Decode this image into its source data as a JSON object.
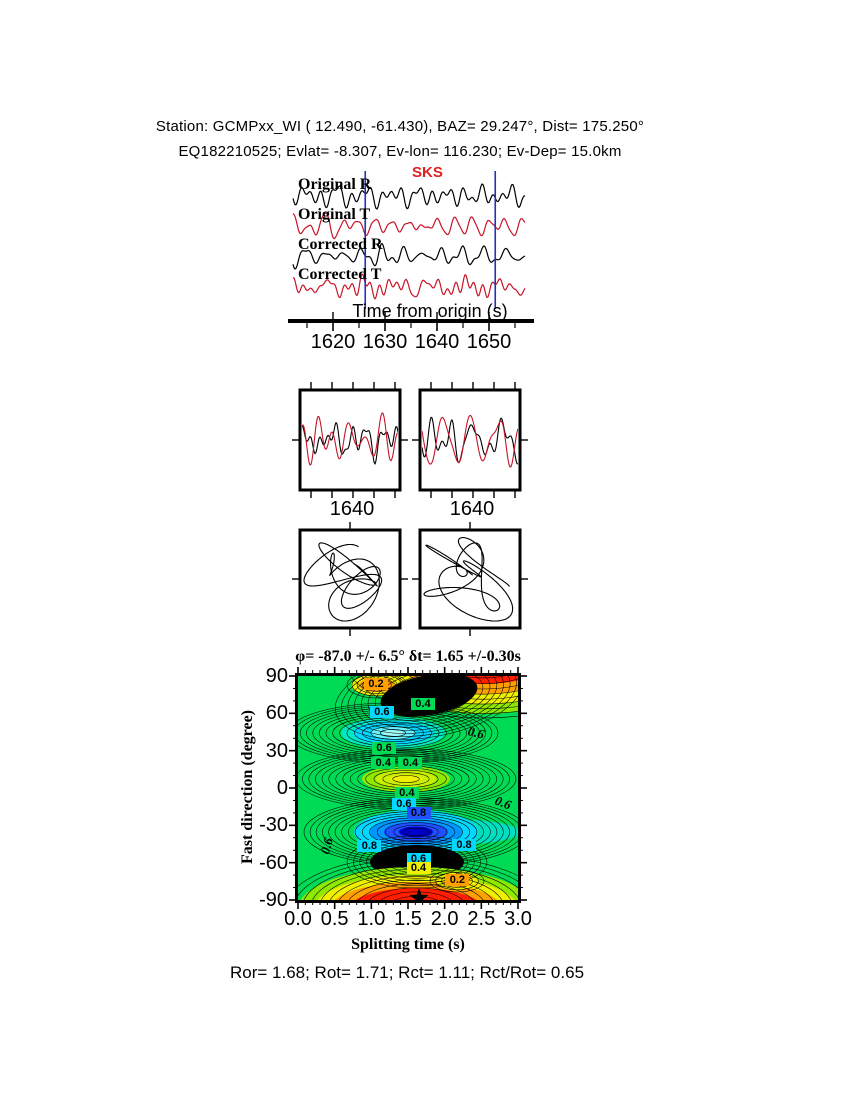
{
  "header": {
    "line1": "Station: GCMPxx_WI (  12.490,  -61.430), BAZ=   29.247°, Dist=  175.250°",
    "line2": "EQ182210525; Evlat=  -8.307, Ev-lon= 116.230; Ev-Dep= 15.0km"
  },
  "traces": {
    "phase_label": "SKS",
    "labels": [
      "Original R",
      "Original T",
      "Corrected R",
      "Corrected T"
    ],
    "colors": [
      "black",
      "red",
      "black",
      "red"
    ],
    "axis_label": "Time from origin (s)",
    "tick_values": [
      "1620",
      "1630",
      "1640",
      "1650"
    ],
    "window_line_times": [
      1626.2,
      1651.2
    ]
  },
  "compare_panels": {
    "tick_labels": [
      "1640",
      "1640"
    ]
  },
  "contour": {
    "title": "φ= -87.0 +/- 6.5° δt= 1.65 +/-0.30s",
    "ylabel": "Fast direction (degree)",
    "xlabel": "Splitting time (s)",
    "ytick_values": [
      "90",
      "60",
      "30",
      "0",
      "-30",
      "-60",
      "-90"
    ],
    "xtick_values": [
      "0.0",
      "0.5",
      "1.0",
      "1.5",
      "2.0",
      "2.5",
      "3.0"
    ],
    "level_labels": [
      {
        "text": "0.2",
        "t": 1.05,
        "deg": 82.6,
        "bg": "orange",
        "rot": 0
      },
      {
        "text": "0.4",
        "t": 1.69,
        "deg": 66.7,
        "bg": "green",
        "rot": 0
      },
      {
        "text": "0.6",
        "t": 1.13,
        "deg": 60.3,
        "bg": "cyan",
        "rot": 0
      },
      {
        "text": "0.6",
        "t": 2.43,
        "deg": 45.0,
        "bg": "none",
        "rot": 14
      },
      {
        "text": "0.6",
        "t": 1.16,
        "deg": 31.4,
        "bg": "green",
        "rot": 0
      },
      {
        "text": "0.4",
        "t": 1.15,
        "deg": 19.3,
        "bg": "green",
        "rot": 0
      },
      {
        "text": "0.4",
        "t": 1.52,
        "deg": 19.3,
        "bg": "green",
        "rot": 0
      },
      {
        "text": "0.4",
        "t": 1.47,
        "deg": -4.8,
        "bg": "green",
        "rot": 0
      },
      {
        "text": "0.6",
        "t": 1.43,
        "deg": -13.7,
        "bg": "cyan",
        "rot": 0
      },
      {
        "text": "0.8",
        "t": 1.63,
        "deg": -20.9,
        "bg": "blue",
        "rot": 0
      },
      {
        "text": "0.6",
        "t": 0.39,
        "deg": -45.8,
        "bg": "none",
        "rot": -75
      },
      {
        "text": "0.8",
        "t": 0.96,
        "deg": -47.4,
        "bg": "cyan",
        "rot": 0
      },
      {
        "text": "0.8",
        "t": 2.25,
        "deg": -46.6,
        "bg": "cyan",
        "rot": 0
      },
      {
        "text": "0.6",
        "t": 2.79,
        "deg": -11.3,
        "bg": "none",
        "rot": 20
      },
      {
        "text": "0.6",
        "t": 1.63,
        "deg": -57.9,
        "bg": "cyan",
        "rot": 0
      },
      {
        "text": "0.4",
        "t": 1.63,
        "deg": -65.1,
        "bg": "yellow",
        "rot": 0
      },
      {
        "text": "0.2",
        "t": 2.16,
        "deg": -74.8,
        "bg": "orange",
        "rot": 0
      }
    ]
  },
  "footer": {
    "text": "Ror= 1.68; Rot= 1.71; Rct= 1.11; Rct/Rot= 0.65"
  },
  "palette": {
    "green": "#00DB55",
    "cyan": "#00D8FF",
    "blue": "#2050FF",
    "orange": "#FFA000",
    "yellow": "#EFF000",
    "red": "#FF1E00",
    "yellow_green": "#8FE800",
    "light_cyan": "#9FFFF4",
    "deep_blue": "#0000C8",
    "mid_blue": "#0096FF",
    "black": "#000000",
    "trace_red": "#C81428",
    "window_blue": "#2233BB",
    "sks_red": "#E02020"
  },
  "chart_data": {
    "type": "contour",
    "title": "φ= -87.0 +/- 6.5° δt= 1.65 +/-0.30s",
    "xlabel": "Splitting time (s)",
    "ylabel": "Fast direction (degree)",
    "xlim": [
      0.0,
      3.0
    ],
    "ylim": [
      -90,
      90
    ],
    "xticks": [
      0.0,
      0.5,
      1.0,
      1.5,
      2.0,
      2.5,
      3.0
    ],
    "yticks": [
      90,
      60,
      30,
      0,
      -30,
      -60,
      -90
    ],
    "labeled_contour_levels": [
      0.2,
      0.4,
      0.6,
      0.8
    ],
    "best_solution": {
      "fast_direction_deg": -87.0,
      "fast_direction_err_deg": 6.5,
      "split_time_s": 1.65,
      "split_time_err_s": 0.3,
      "marker": "black-star",
      "marker_at": [
        1.65,
        -88.5
      ]
    },
    "surface_features": [
      {
        "kind": "maximum-dark",
        "t": 1.77,
        "deg": 74
      },
      {
        "kind": "high-red-band-top-edge",
        "t": 2.4,
        "deg": 90
      },
      {
        "kind": "local-min-cyan",
        "t": 1.29,
        "deg": 44
      },
      {
        "kind": "local-high-yellow",
        "t": 1.47,
        "deg": 7
      },
      {
        "kind": "minimum-blue",
        "t": 1.6,
        "deg": -35
      },
      {
        "kind": "maximum-dark",
        "t": 1.61,
        "deg": -60
      },
      {
        "kind": "high-red-band-bottom-edge",
        "t": 1.6,
        "deg": -90
      }
    ],
    "results": {
      "Ror": 1.68,
      "Rot": 1.71,
      "Rct": 1.11,
      "Rct_over_Rot": 0.65
    },
    "waveform_axis": {
      "label": "Time from origin (s)",
      "ticks": [
        1620,
        1630,
        1640,
        1650
      ],
      "analysis_window_s": [
        1626.2,
        1651.2
      ]
    },
    "trace_names": [
      "Original R",
      "Original T",
      "Corrected R",
      "Corrected T"
    ],
    "compare_panel_ticks": [
      1640,
      1640
    ]
  }
}
